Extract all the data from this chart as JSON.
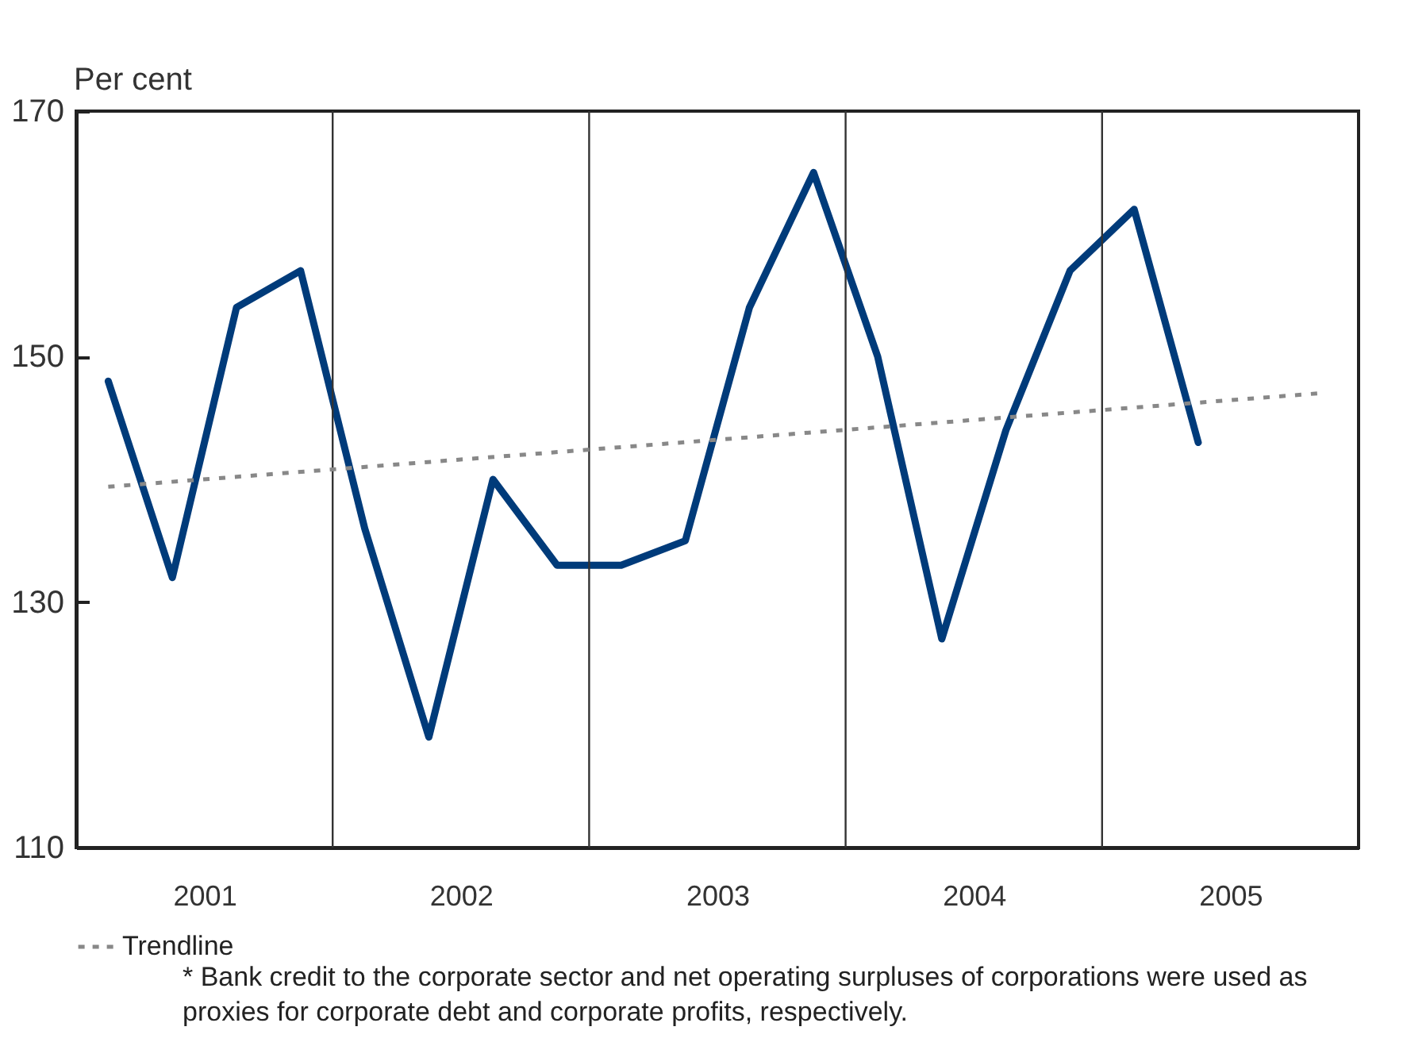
{
  "chart_data": {
    "type": "line",
    "ylabel": "Per cent",
    "ylim": [
      110,
      170
    ],
    "yticks": [
      110,
      130,
      150,
      170
    ],
    "xlim": [
      2001,
      2006
    ],
    "xticks": [
      {
        "value": 2001.5,
        "label": "2001"
      },
      {
        "value": 2002.5,
        "label": "2002"
      },
      {
        "value": 2003.5,
        "label": "2003"
      },
      {
        "value": 2004.5,
        "label": "2004"
      },
      {
        "value": 2005.5,
        "label": "2005"
      }
    ],
    "x": [
      2001.125,
      2001.375,
      2001.625,
      2001.875,
      2002.125,
      2002.375,
      2002.625,
      2002.875,
      2003.125,
      2003.375,
      2003.625,
      2003.875,
      2004.125,
      2004.375,
      2004.625,
      2004.875,
      2005.125,
      2005.375
    ],
    "series": [
      {
        "color": "#003b7a",
        "values": [
          148,
          132,
          154,
          157,
          136,
          119,
          140,
          133,
          133,
          135,
          154,
          165,
          150,
          127,
          144,
          157,
          162,
          143
        ]
      },
      {
        "name": "Trendline",
        "type": "line",
        "color": "#888888",
        "line_style": "dashed",
        "x": [
          2001.125,
          2005.84
        ],
        "values": [
          139.4,
          147.0
        ]
      }
    ],
    "ref_lines": [
      {
        "axis": "x",
        "value": 2002,
        "color": "#333333"
      },
      {
        "axis": "x",
        "value": 2003,
        "color": "#333333"
      },
      {
        "axis": "x",
        "value": 2004,
        "color": "#333333"
      },
      {
        "axis": "x",
        "value": 2005,
        "color": "#333333"
      }
    ],
    "grid": false,
    "legend": "bottom",
    "annotations": [
      "*   Bank credit to the corporate sector and net operating surpluses of corporations were used as proxies for corporate debt and corporate profits, respectively."
    ]
  }
}
